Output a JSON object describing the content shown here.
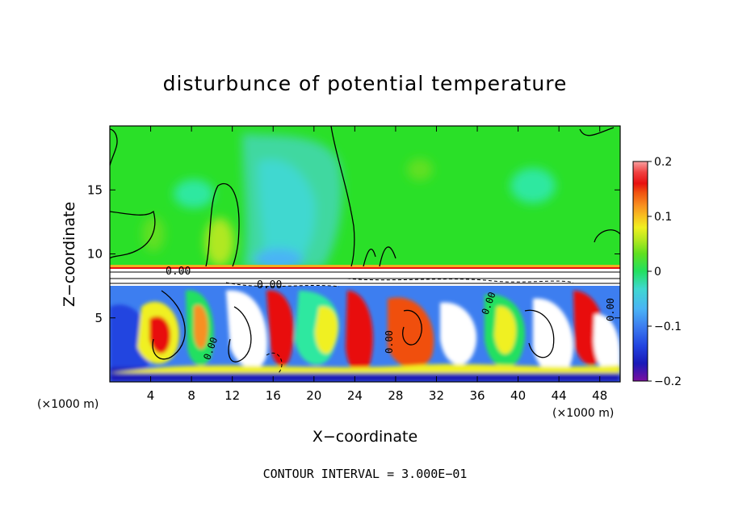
{
  "chart_data": {
    "type": "heatmap",
    "title": "disturbunce of potential temperature",
    "xlabel": "X−coordinate",
    "ylabel": "Z−coordinate",
    "x_unit": "(×1000 m)",
    "y_unit": "(×1000 m)",
    "xlim": [
      0,
      50
    ],
    "ylim": [
      0,
      20
    ],
    "x_ticks": [
      "4",
      "8",
      "12",
      "16",
      "20",
      "24",
      "28",
      "32",
      "36",
      "40",
      "44",
      "48"
    ],
    "x_tick_values": [
      4,
      8,
      12,
      16,
      20,
      24,
      28,
      32,
      36,
      40,
      44,
      48
    ],
    "y_ticks": [
      "5",
      "10",
      "15"
    ],
    "y_tick_values": [
      5,
      10,
      15
    ],
    "colorbar": {
      "min": -0.2,
      "max": 0.2,
      "tick_labels": [
        "0.2",
        "0.1",
        "0",
        "−0.1",
        "−0.2"
      ],
      "tick_values": [
        0.2,
        0.1,
        0,
        -0.1,
        -0.2
      ],
      "colors": [
        "#7b0fa0",
        "#1a1ab8",
        "#2244e0",
        "#3d7ef0",
        "#4ab4f5",
        "#3fd8d0",
        "#2ee8a0",
        "#22e060",
        "#2ae028",
        "#60e020",
        "#b0e820",
        "#f0f020",
        "#f8c020",
        "#f89020",
        "#f05010",
        "#e81010",
        "#f04040",
        "#f8a0a0"
      ]
    },
    "contour_labels": [
      "0.00",
      "0.00",
      "0.00",
      "0.00",
      "0.00",
      "0.00"
    ],
    "contour_interval_text": "CONTOUR INTERVAL = 3.000E−01",
    "regions": [
      {
        "name": "upper layer",
        "z_range": [
          9,
          20
        ],
        "value_approx": 0.0
      },
      {
        "name": "lower layer",
        "z_range": [
          0,
          7.5
        ],
        "value_range": [
          -0.2,
          0.2
        ]
      }
    ]
  }
}
